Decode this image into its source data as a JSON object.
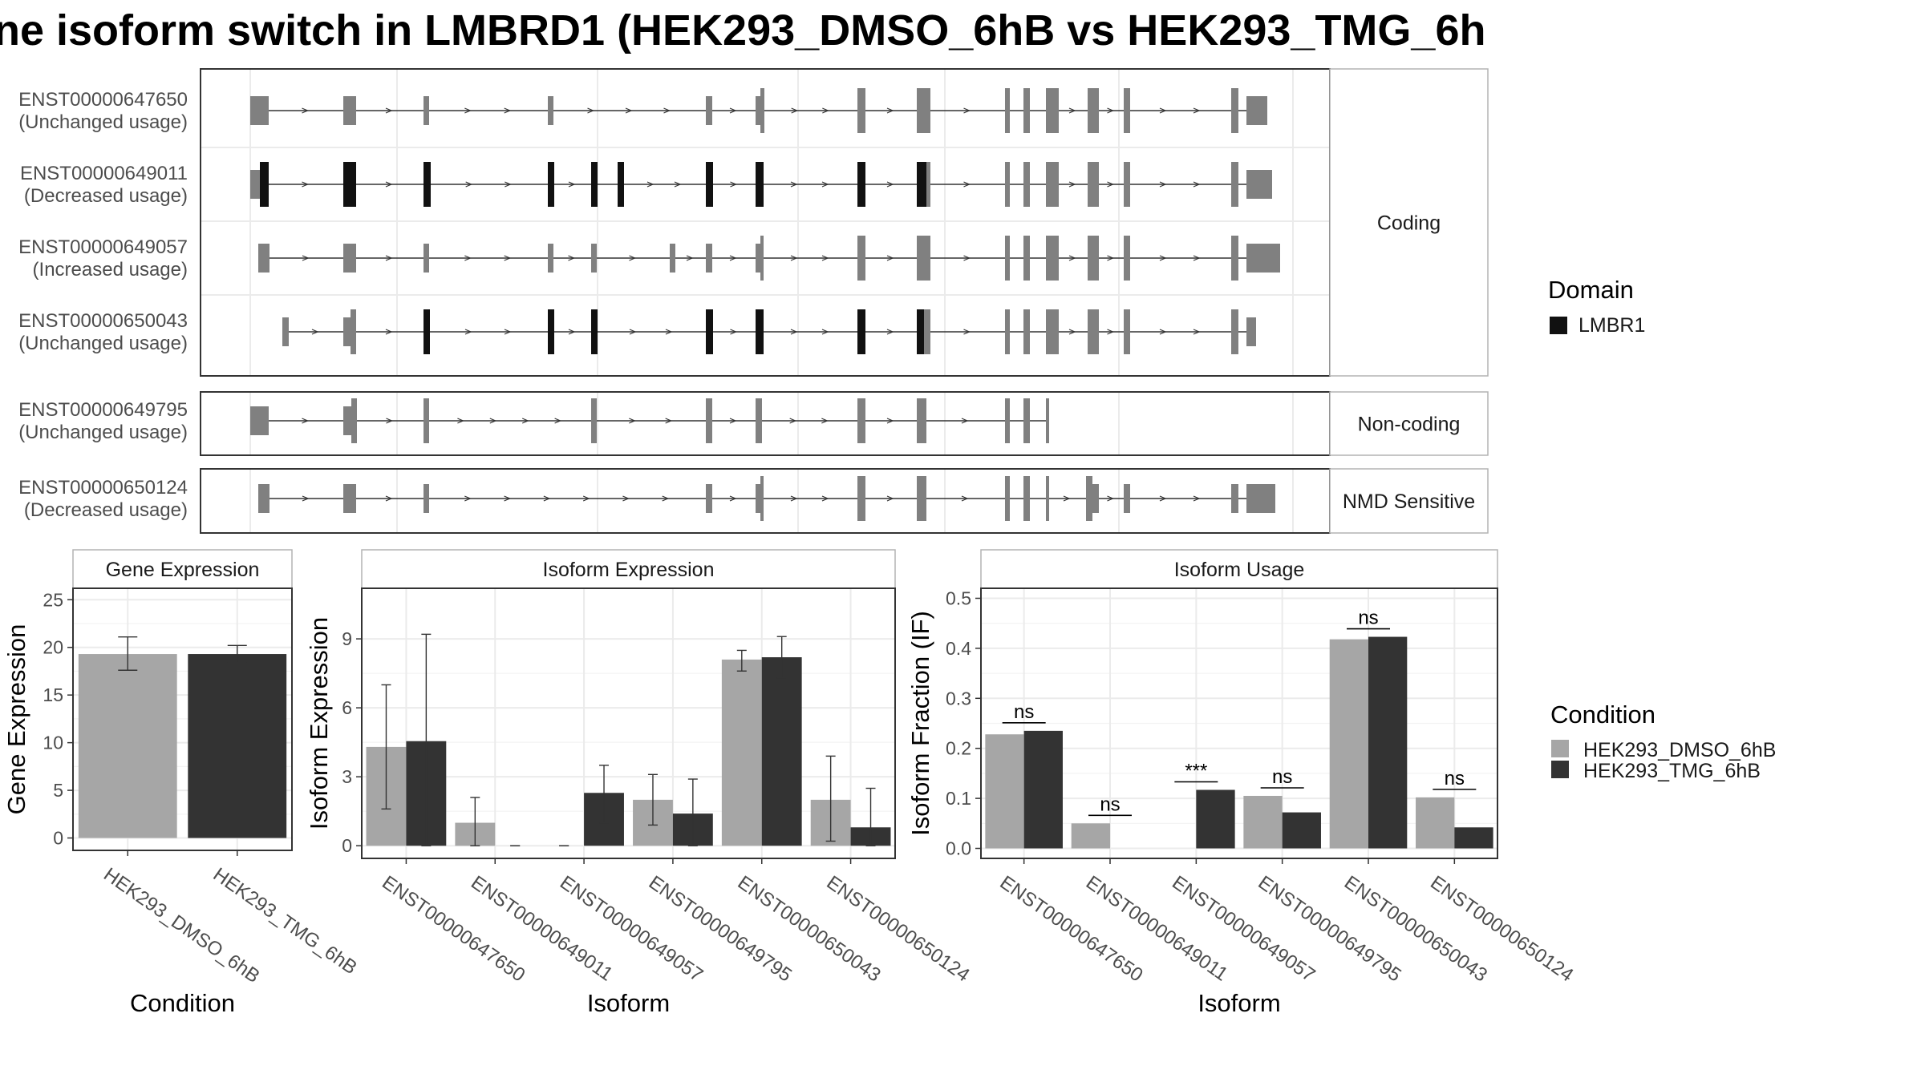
{
  "title": "ne isoform switch in LMBRD1 (HEK293_DMSO_6hB vs HEK293_TMG_6h",
  "colors": {
    "dmso": "#a6a6a6",
    "tmg": "#333333",
    "domain": "#111111",
    "exon": "#808080",
    "strip_bg": "#ffffff",
    "grid": "#ebebeb",
    "panel_border": "#333333",
    "strip_border": "#b3b3b3"
  },
  "structure": {
    "facet_labels": [
      "Coding",
      "Non-coding",
      "NMD Sensitive"
    ],
    "transcripts": [
      {
        "id": "ENST00000647650",
        "usage": "(Unchanged usage)",
        "facet": 0
      },
      {
        "id": "ENST00000649011",
        "usage": "(Decreased usage)",
        "facet": 0
      },
      {
        "id": "ENST00000649057",
        "usage": "(Increased usage)",
        "facet": 0
      },
      {
        "id": "ENST00000650043",
        "usage": "(Unchanged usage)",
        "facet": 0
      },
      {
        "id": "ENST00000649795",
        "usage": "(Unchanged usage)",
        "facet": 1
      },
      {
        "id": "ENST00000650124",
        "usage": "(Decreased usage)",
        "facet": 2
      }
    ]
  },
  "legend_domain": {
    "title": "Domain",
    "items": [
      {
        "label": "LMBR1",
        "color": "#111111"
      }
    ]
  },
  "legend_condition": {
    "title": "Condition",
    "items": [
      {
        "label": "HEK293_DMSO_6hB",
        "color": "#a6a6a6"
      },
      {
        "label": "HEK293_TMG_6hB",
        "color": "#333333"
      }
    ]
  },
  "chart_data": [
    {
      "type": "bar",
      "panel": "Gene Expression",
      "xlabel": "Condition",
      "ylabel": "Gene Expression",
      "ylim": [
        -1.3,
        26.2
      ],
      "yticks": [
        0,
        5,
        10,
        15,
        20,
        25
      ],
      "categories": [
        "HEK293_DMSO_6hB",
        "HEK293_TMG_6hB"
      ],
      "values": [
        19.3,
        19.3
      ],
      "err_low": [
        17.6,
        18.4
      ],
      "err_high": [
        21.1,
        20.2
      ]
    },
    {
      "type": "bar",
      "panel": "Isoform Expression",
      "xlabel": "Isoform",
      "ylabel": "Isoform Expression",
      "ylim": [
        -0.55,
        11.2
      ],
      "yticks": [
        0,
        3,
        6,
        9
      ],
      "categories": [
        "ENST00000647650",
        "ENST00000649011",
        "ENST00000649057",
        "ENST00000649795",
        "ENST00000650043",
        "ENST00000650124"
      ],
      "series": [
        {
          "name": "HEK293_DMSO_6hB",
          "values": [
            4.3,
            1.0,
            0.0,
            2.0,
            8.1,
            2.0
          ],
          "err_low": [
            1.6,
            0.0,
            0.0,
            0.9,
            7.6,
            0.2
          ],
          "err_high": [
            7.0,
            2.1,
            0.0,
            3.1,
            8.5,
            3.9
          ]
        },
        {
          "name": "HEK293_TMG_6hB",
          "values": [
            4.55,
            0.0,
            2.3,
            1.4,
            8.2,
            0.8
          ],
          "err_low": [
            0.0,
            0.0,
            1.0,
            0.0,
            7.3,
            0.0
          ],
          "err_high": [
            9.2,
            0.0,
            3.5,
            2.9,
            9.1,
            2.5
          ]
        }
      ]
    },
    {
      "type": "bar",
      "panel": "Isoform Usage",
      "xlabel": "Isoform",
      "ylabel": "Isoform Fraction (IF)",
      "ylim": [
        -0.02,
        0.52
      ],
      "yticks": [
        0.0,
        0.1,
        0.2,
        0.3,
        0.4,
        0.5
      ],
      "categories": [
        "ENST00000647650",
        "ENST00000649011",
        "ENST00000649057",
        "ENST00000649795",
        "ENST00000650043",
        "ENST00000650124"
      ],
      "series": [
        {
          "name": "HEK293_DMSO_6hB",
          "values": [
            0.228,
            0.05,
            0.0,
            0.105,
            0.418,
            0.102
          ]
        },
        {
          "name": "HEK293_TMG_6hB",
          "values": [
            0.235,
            0.0,
            0.117,
            0.072,
            0.423,
            0.042
          ]
        }
      ],
      "annotations": [
        "ns",
        "ns",
        "***",
        "ns",
        "ns",
        "ns"
      ]
    }
  ]
}
